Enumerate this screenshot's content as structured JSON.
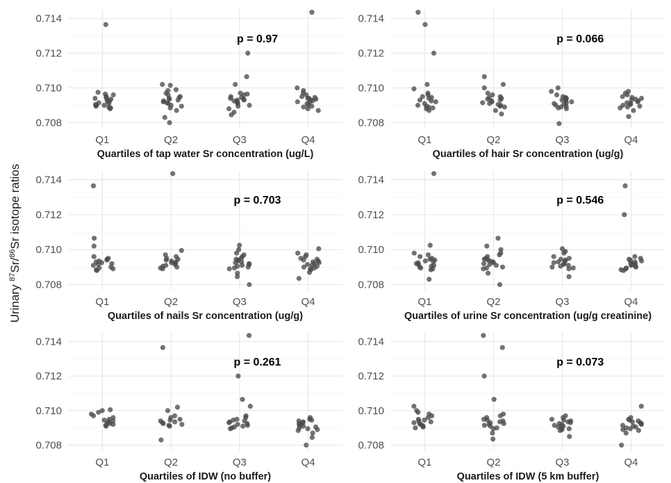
{
  "y_axis_label": {
    "prefix": "Urinary ",
    "sup1": "87",
    "mid": "Sr/",
    "sup2": "86",
    "suffix": "Sr isotope ratios"
  },
  "colors": {
    "point": "#4a4a4a",
    "grid": "#e6e6e6",
    "text": "#1a1a1a"
  },
  "chart_data": [
    {
      "type": "scatter",
      "xlabel": "Quartiles of tap water Sr concentration (ug/L)",
      "annotation": "p = 0.97",
      "categories": [
        "Q1",
        "Q2",
        "Q3",
        "Q4"
      ],
      "yticks": [
        "0.708",
        "0.710",
        "0.712",
        "0.714"
      ],
      "ylim": [
        0.7077,
        0.7145
      ],
      "points": {
        "Q1": [
          0.71365,
          0.70975,
          0.70965,
          0.7096,
          0.7095,
          0.70945,
          0.7094,
          0.70935,
          0.7093,
          0.70925,
          0.7092,
          0.70915,
          0.7091,
          0.70905,
          0.709,
          0.709,
          0.70895,
          0.7089,
          0.70885,
          0.7088
        ],
        "Q2": [
          0.7102,
          0.71015,
          0.7099,
          0.70985,
          0.7097,
          0.7096,
          0.7095,
          0.70945,
          0.7094,
          0.70935,
          0.7093,
          0.70925,
          0.7092,
          0.70915,
          0.7091,
          0.709,
          0.70895,
          0.70885,
          0.7087,
          0.7083,
          0.708
        ],
        "Q3": [
          0.712,
          0.71065,
          0.7102,
          0.7097,
          0.70965,
          0.7096,
          0.7095,
          0.70945,
          0.7094,
          0.70935,
          0.7093,
          0.7093,
          0.70925,
          0.7092,
          0.70915,
          0.7091,
          0.709,
          0.70895,
          0.7088,
          0.7086,
          0.70845
        ],
        "Q4": [
          0.71435,
          0.71,
          0.70985,
          0.7097,
          0.7096,
          0.7095,
          0.70945,
          0.7094,
          0.7094,
          0.70935,
          0.7093,
          0.70925,
          0.7092,
          0.70915,
          0.7091,
          0.709,
          0.70895,
          0.7089,
          0.7088,
          0.7087
        ]
      }
    },
    {
      "type": "scatter",
      "xlabel": "Quartiles of hair Sr concentration (ug/g)",
      "annotation": "p = 0.066",
      "categories": [
        "Q1",
        "Q2",
        "Q3",
        "Q4"
      ],
      "yticks": [
        "0.708",
        "0.710",
        "0.712",
        "0.714"
      ],
      "ylim": [
        0.7077,
        0.7145
      ],
      "points": {
        "Q1": [
          0.71435,
          0.71365,
          0.712,
          0.7102,
          0.70995,
          0.7097,
          0.7096,
          0.7095,
          0.70945,
          0.7094,
          0.7093,
          0.70925,
          0.7092,
          0.7091,
          0.709,
          0.70895,
          0.7089,
          0.70885,
          0.7088,
          0.7087
        ],
        "Q2": [
          0.71065,
          0.7102,
          0.71,
          0.7097,
          0.7096,
          0.7095,
          0.70945,
          0.7094,
          0.70935,
          0.7093,
          0.70925,
          0.7092,
          0.70915,
          0.7091,
          0.70905,
          0.709,
          0.70895,
          0.7089,
          0.7087,
          0.7085
        ],
        "Q3": [
          0.71,
          0.7098,
          0.7096,
          0.7095,
          0.70945,
          0.7094,
          0.70935,
          0.7093,
          0.70925,
          0.7092,
          0.70915,
          0.7091,
          0.70905,
          0.709,
          0.70895,
          0.7089,
          0.70885,
          0.7088,
          0.70795
        ],
        "Q4": [
          0.7098,
          0.7097,
          0.7096,
          0.7095,
          0.70945,
          0.7094,
          0.70935,
          0.7093,
          0.70925,
          0.7092,
          0.70915,
          0.7091,
          0.70905,
          0.709,
          0.70895,
          0.7089,
          0.70885,
          0.7087,
          0.70835
        ]
      }
    },
    {
      "type": "scatter",
      "xlabel": "Quartiles of nails Sr concentration (ug/g)",
      "annotation": "p = 0.703",
      "categories": [
        "Q1",
        "Q2",
        "Q3",
        "Q4"
      ],
      "yticks": [
        "0.708",
        "0.710",
        "0.712",
        "0.714"
      ],
      "ylim": [
        0.7077,
        0.7145
      ],
      "points": {
        "Q1": [
          0.71365,
          0.71065,
          0.7102,
          0.7096,
          0.7095,
          0.70945,
          0.7094,
          0.70935,
          0.7093,
          0.70925,
          0.7092,
          0.70915,
          0.7091,
          0.709,
          0.70895,
          0.7089,
          0.70885,
          0.7088
        ],
        "Q2": [
          0.71435,
          0.70995,
          0.7097,
          0.7096,
          0.7095,
          0.70945,
          0.7094,
          0.70935,
          0.7093,
          0.70925,
          0.7092,
          0.70915,
          0.7091,
          0.70905,
          0.709,
          0.70895,
          0.7089
        ],
        "Q3": [
          0.71025,
          0.71,
          0.7098,
          0.7097,
          0.7096,
          0.7095,
          0.70945,
          0.7094,
          0.70935,
          0.7093,
          0.70925,
          0.7092,
          0.70915,
          0.7091,
          0.70905,
          0.709,
          0.70895,
          0.7089,
          0.70865,
          0.70845,
          0.708
        ],
        "Q4": [
          0.71005,
          0.7098,
          0.7097,
          0.7096,
          0.7095,
          0.70945,
          0.7094,
          0.70935,
          0.7093,
          0.70925,
          0.7092,
          0.70915,
          0.7091,
          0.70905,
          0.709,
          0.70895,
          0.7089,
          0.70885,
          0.7087,
          0.70835
        ]
      }
    },
    {
      "type": "scatter",
      "xlabel": "Quartiles of urine Sr concentration (ug/g creatinine)",
      "annotation": "p = 0.546",
      "categories": [
        "Q1",
        "Q2",
        "Q3",
        "Q4"
      ],
      "yticks": [
        "0.708",
        "0.710",
        "0.712",
        "0.714"
      ],
      "ylim": [
        0.7077,
        0.7145
      ],
      "points": {
        "Q1": [
          0.71435,
          0.71025,
          0.7098,
          0.7097,
          0.7096,
          0.7095,
          0.70945,
          0.7094,
          0.70935,
          0.7093,
          0.70925,
          0.7092,
          0.70915,
          0.7091,
          0.70905,
          0.709,
          0.70895,
          0.7089,
          0.70885,
          0.7083
        ],
        "Q2": [
          0.71065,
          0.7102,
          0.71,
          0.7098,
          0.7097,
          0.7096,
          0.7095,
          0.70945,
          0.7094,
          0.70935,
          0.7093,
          0.70925,
          0.7092,
          0.70915,
          0.7091,
          0.709,
          0.70895,
          0.7089,
          0.70865,
          0.708
        ],
        "Q3": [
          0.71005,
          0.7099,
          0.7098,
          0.7096,
          0.7095,
          0.70945,
          0.7094,
          0.70935,
          0.7093,
          0.70925,
          0.7092,
          0.70915,
          0.7091,
          0.70905,
          0.709,
          0.70895,
          0.7089,
          0.70845
        ],
        "Q4": [
          0.71365,
          0.712,
          0.7096,
          0.7095,
          0.70945,
          0.7094,
          0.70935,
          0.7093,
          0.70925,
          0.7092,
          0.70915,
          0.7091,
          0.70905,
          0.709,
          0.70895,
          0.7089,
          0.70885,
          0.7088
        ]
      }
    },
    {
      "type": "scatter",
      "xlabel": "Quartiles of IDW (no buffer)",
      "annotation": "p = 0.261",
      "categories": [
        "Q1",
        "Q2",
        "Q3",
        "Q4"
      ],
      "yticks": [
        "0.708",
        "0.710",
        "0.712",
        "0.714"
      ],
      "ylim": [
        0.7077,
        0.7145
      ],
      "points": {
        "Q1": [
          0.71005,
          0.71,
          0.7099,
          0.7098,
          0.7097,
          0.7096,
          0.7095,
          0.70945,
          0.7094,
          0.70935,
          0.7093,
          0.70925,
          0.7092,
          0.70915,
          0.7091
        ],
        "Q2": [
          0.71365,
          0.7102,
          0.71,
          0.7097,
          0.7096,
          0.7095,
          0.70945,
          0.7094,
          0.70935,
          0.7093,
          0.70925,
          0.7092,
          0.70915,
          0.7091,
          0.7083
        ],
        "Q3": [
          0.71435,
          0.712,
          0.71065,
          0.71025,
          0.7097,
          0.7096,
          0.7095,
          0.70945,
          0.7094,
          0.70935,
          0.7093,
          0.70925,
          0.7092,
          0.70915,
          0.7091,
          0.70905,
          0.709,
          0.70895
        ],
        "Q4": [
          0.7096,
          0.7095,
          0.70945,
          0.7094,
          0.70935,
          0.7093,
          0.70925,
          0.7092,
          0.70915,
          0.7091,
          0.70905,
          0.709,
          0.70895,
          0.7089,
          0.70885,
          0.7087,
          0.70845,
          0.708
        ]
      }
    },
    {
      "type": "scatter",
      "xlabel": "Quartiles of IDW (5 km buffer)",
      "annotation": "p = 0.073",
      "categories": [
        "Q1",
        "Q2",
        "Q3",
        "Q4"
      ],
      "yticks": [
        "0.708",
        "0.710",
        "0.712",
        "0.714"
      ],
      "ylim": [
        0.7077,
        0.7145
      ],
      "points": {
        "Q1": [
          0.71025,
          0.71,
          0.7099,
          0.7098,
          0.7097,
          0.7096,
          0.7095,
          0.70945,
          0.7094,
          0.70935,
          0.7093,
          0.70925,
          0.7092,
          0.70915,
          0.7091,
          0.70905,
          0.709
        ],
        "Q2": [
          0.71435,
          0.71365,
          0.712,
          0.71065,
          0.7098,
          0.7097,
          0.7096,
          0.7095,
          0.70945,
          0.7094,
          0.70935,
          0.7093,
          0.70925,
          0.7092,
          0.70915,
          0.7091,
          0.709,
          0.70895,
          0.7087,
          0.70835
        ],
        "Q3": [
          0.7097,
          0.7096,
          0.7095,
          0.70945,
          0.7094,
          0.70935,
          0.7093,
          0.70925,
          0.7092,
          0.70915,
          0.7091,
          0.70905,
          0.709,
          0.70895,
          0.7089,
          0.70885,
          0.7085
        ],
        "Q4": [
          0.71025,
          0.7096,
          0.7095,
          0.70945,
          0.7094,
          0.70935,
          0.7093,
          0.70925,
          0.7092,
          0.70915,
          0.7091,
          0.70905,
          0.709,
          0.70895,
          0.7089,
          0.70885,
          0.7087,
          0.708
        ]
      }
    }
  ]
}
